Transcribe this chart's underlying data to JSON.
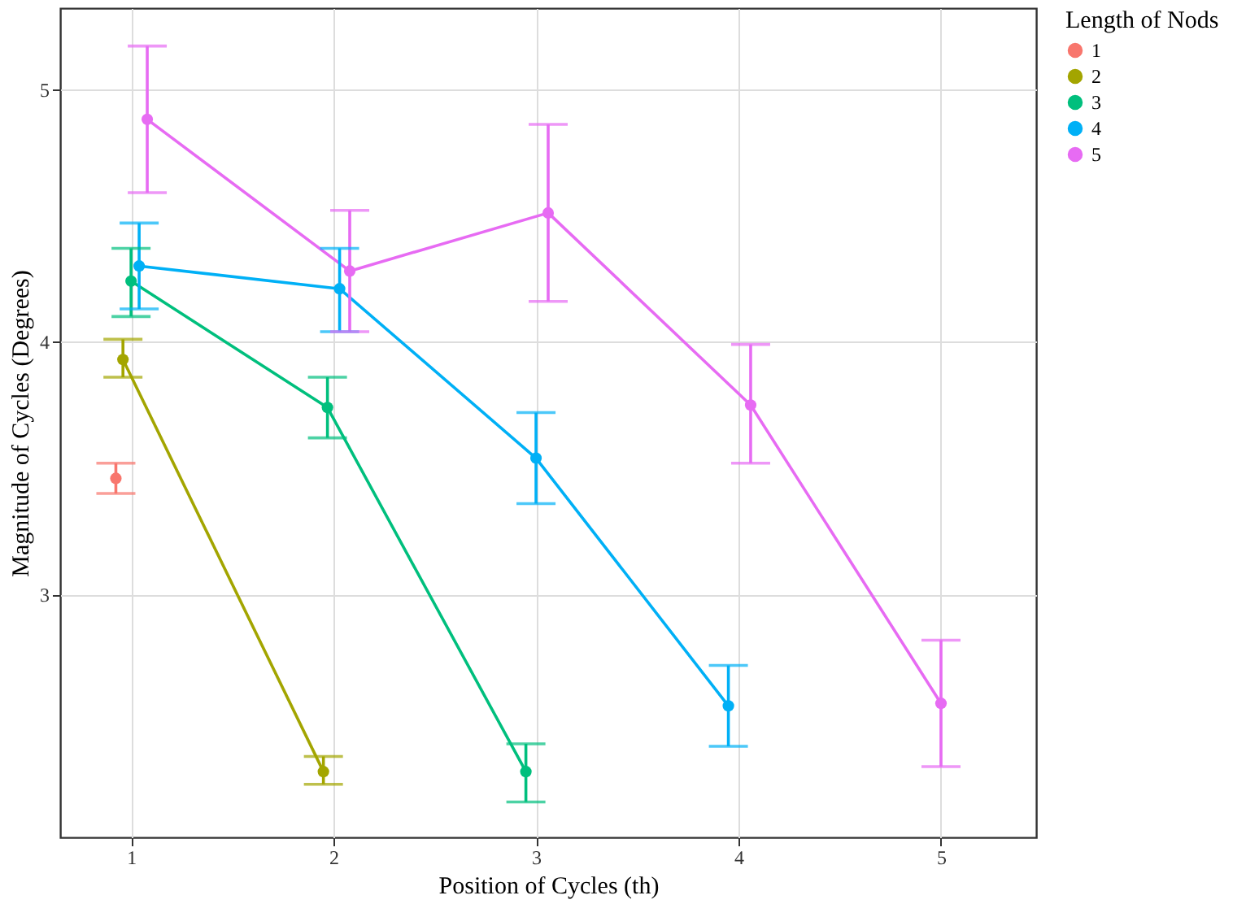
{
  "chart_data": {
    "type": "line",
    "xlabel": "Position of Cycles (th)",
    "ylabel": "Magnitude of Cycles (Degrees)",
    "legend_title": "Length of Nods",
    "legend": "right",
    "grid": true,
    "marker": "circle",
    "line_style": "solid",
    "xlim": [
      0.65,
      5.47
    ],
    "xticks": [
      1,
      2,
      3,
      4,
      5
    ],
    "ylim": [
      2.04,
      5.32
    ],
    "yticks": [
      3,
      4,
      5
    ],
    "series": [
      {
        "name": "1",
        "color": "#f8766d",
        "x": [
          0.925
        ],
        "values": [
          3.46
        ],
        "errors": [
          [
            3.4,
            3.52
          ]
        ]
      },
      {
        "name": "2",
        "color": "#a3a500",
        "x": [
          0.96,
          1.95
        ],
        "values": [
          3.93,
          2.3
        ],
        "errors": [
          [
            3.86,
            4.01
          ],
          [
            2.25,
            2.36
          ]
        ]
      },
      {
        "name": "3",
        "color": "#00bf7d",
        "x": [
          1.0,
          1.97,
          2.95
        ],
        "values": [
          4.24,
          3.74,
          2.3
        ],
        "errors": [
          [
            4.1,
            4.37
          ],
          [
            3.62,
            3.86
          ],
          [
            2.18,
            2.41
          ]
        ]
      },
      {
        "name": "4",
        "color": "#00b0f6",
        "x": [
          1.04,
          2.03,
          3.0,
          3.95
        ],
        "values": [
          4.3,
          4.21,
          3.54,
          2.56
        ],
        "errors": [
          [
            4.13,
            4.47
          ],
          [
            4.04,
            4.37
          ],
          [
            3.36,
            3.72
          ],
          [
            2.4,
            2.72
          ]
        ]
      },
      {
        "name": "5",
        "color": "#e76bf3",
        "x": [
          1.08,
          2.08,
          3.06,
          4.06,
          5.0
        ],
        "values": [
          4.88,
          4.28,
          4.51,
          3.75,
          2.57
        ],
        "errors": [
          [
            4.59,
            5.17
          ],
          [
            4.04,
            4.52
          ],
          [
            4.16,
            4.86
          ],
          [
            3.52,
            3.99
          ],
          [
            2.32,
            2.82
          ]
        ]
      }
    ]
  }
}
